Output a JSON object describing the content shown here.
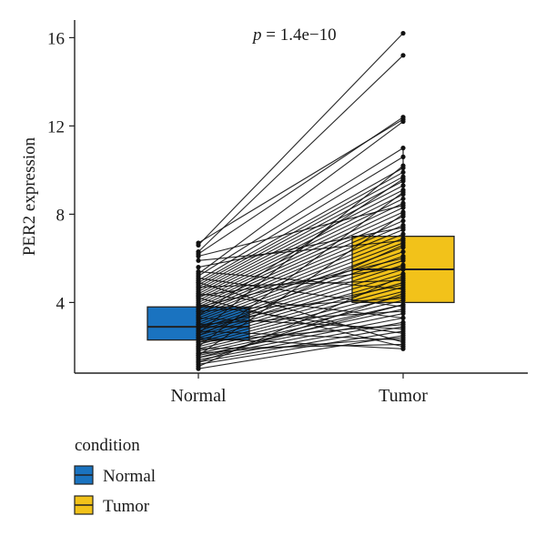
{
  "chart_data": {
    "type": "boxplot-paired",
    "ylabel": "PER2 expression",
    "xlabel": "",
    "categories": [
      "Normal",
      "Tumor"
    ],
    "yticks": [
      4,
      8,
      12,
      16
    ],
    "ylim": [
      0.8,
      16.8
    ],
    "annotation": {
      "label": "p",
      "text": " = 1.4e−10"
    },
    "legend": {
      "title": "condition",
      "position": "bottom-left",
      "entries": [
        {
          "label": "Normal",
          "color": "#1a73c0"
        },
        {
          "label": "Tumor",
          "color": "#f2c21a"
        }
      ]
    },
    "boxes": [
      {
        "name": "Normal",
        "q1": 2.3,
        "median": 2.9,
        "q3": 3.8,
        "whisker_low": 1.0,
        "whisker_high": 5.3,
        "color": "#1a73c0"
      },
      {
        "name": "Tumor",
        "q1": 4.0,
        "median": 5.5,
        "q3": 7.0,
        "whisker_low": 1.9,
        "whisker_high": 11.0,
        "color": "#f2c21a"
      }
    ],
    "pairs": [
      [
        6.7,
        12.3
      ],
      [
        6.6,
        16.2
      ],
      [
        6.3,
        15.2
      ],
      [
        6.2,
        12.4
      ],
      [
        5.3,
        12.2
      ],
      [
        5.2,
        11.0
      ],
      [
        5.0,
        10.6
      ],
      [
        4.9,
        10.1
      ],
      [
        4.8,
        9.9
      ],
      [
        4.7,
        9.7
      ],
      [
        4.6,
        9.5
      ],
      [
        4.5,
        9.3
      ],
      [
        4.4,
        9.1
      ],
      [
        4.3,
        8.9
      ],
      [
        4.2,
        8.7
      ],
      [
        4.1,
        8.5
      ],
      [
        4.0,
        8.3
      ],
      [
        3.9,
        8.1
      ],
      [
        3.8,
        7.9
      ],
      [
        3.7,
        7.7
      ],
      [
        3.6,
        7.5
      ],
      [
        3.5,
        7.3
      ],
      [
        3.4,
        7.1
      ],
      [
        3.3,
        6.9
      ],
      [
        3.2,
        6.7
      ],
      [
        3.1,
        6.5
      ],
      [
        3.0,
        6.3
      ],
      [
        2.9,
        6.1
      ],
      [
        2.8,
        5.9
      ],
      [
        2.7,
        5.7
      ],
      [
        2.6,
        5.5
      ],
      [
        2.5,
        5.3
      ],
      [
        2.4,
        5.1
      ],
      [
        2.3,
        4.9
      ],
      [
        2.2,
        4.7
      ],
      [
        2.1,
        4.5
      ],
      [
        2.0,
        4.3
      ],
      [
        1.9,
        4.1
      ],
      [
        1.8,
        3.9
      ],
      [
        1.7,
        3.7
      ],
      [
        1.6,
        3.5
      ],
      [
        1.5,
        3.3
      ],
      [
        1.4,
        3.1
      ],
      [
        1.3,
        2.9
      ],
      [
        1.2,
        2.7
      ],
      [
        1.0,
        2.5
      ],
      [
        6.1,
        8.4
      ],
      [
        5.9,
        6.8
      ],
      [
        5.6,
        7.4
      ],
      [
        5.4,
        4.6
      ],
      [
        5.1,
        3.8
      ],
      [
        4.9,
        2.2
      ],
      [
        4.7,
        5.0
      ],
      [
        4.4,
        3.3
      ],
      [
        4.2,
        2.0
      ],
      [
        3.9,
        2.6
      ],
      [
        3.6,
        4.2
      ],
      [
        3.3,
        2.8
      ],
      [
        3.0,
        3.6
      ],
      [
        2.7,
        2.3
      ],
      [
        2.4,
        1.9
      ],
      [
        2.2,
        3.0
      ],
      [
        1.9,
        2.1
      ],
      [
        1.7,
        2.4
      ],
      [
        1.5,
        3.9
      ],
      [
        1.3,
        4.4
      ],
      [
        1.1,
        5.2
      ],
      [
        3.4,
        9.6
      ],
      [
        2.6,
        10.2
      ],
      [
        2.0,
        9.0
      ],
      [
        1.6,
        8.0
      ],
      [
        3.8,
        6.0
      ],
      [
        4.3,
        5.6
      ],
      [
        2.9,
        4.8
      ],
      [
        2.5,
        6.6
      ]
    ]
  }
}
